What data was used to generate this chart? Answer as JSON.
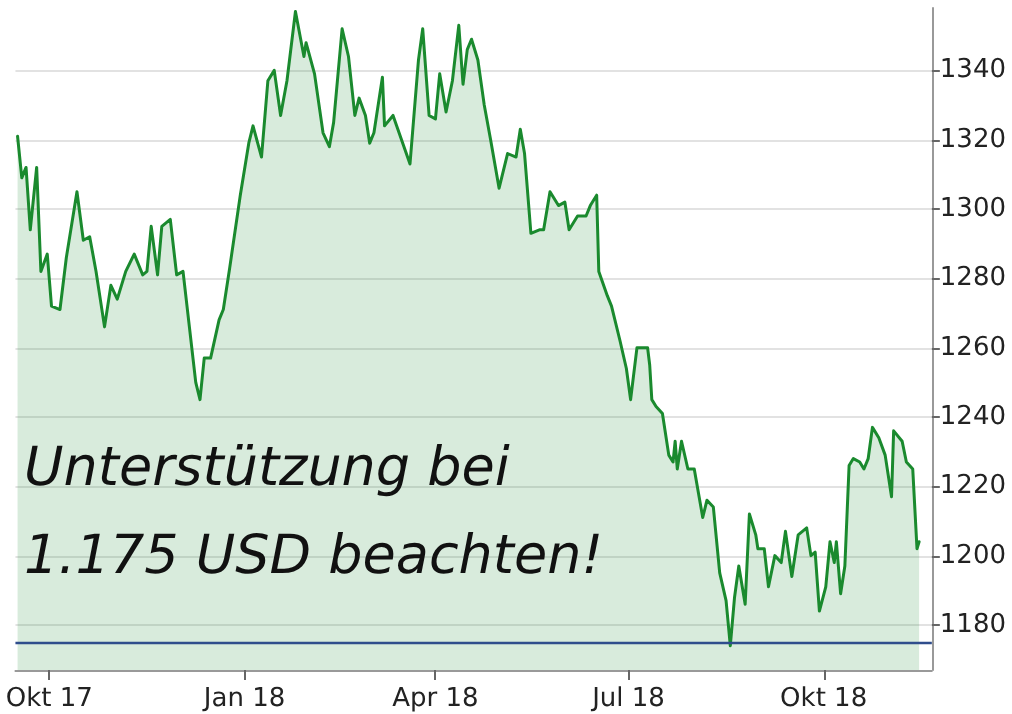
{
  "chart_data": {
    "type": "area",
    "x": [
      "2017-09-16",
      "2017-09-18",
      "2017-09-20",
      "2017-09-22",
      "2017-09-25",
      "2017-09-27",
      "2017-09-30",
      "2017-10-02",
      "2017-10-06",
      "2017-10-09",
      "2017-10-14",
      "2017-10-17",
      "2017-10-20",
      "2017-10-23",
      "2017-10-27",
      "2017-10-30",
      "2017-11-02",
      "2017-11-06",
      "2017-11-10",
      "2017-11-14",
      "2017-11-16",
      "2017-11-18",
      "2017-11-21",
      "2017-11-23",
      "2017-11-27",
      "2017-11-30",
      "2017-12-03",
      "2017-12-06",
      "2017-12-09",
      "2017-12-11",
      "2017-12-13",
      "2017-12-16",
      "2017-12-20",
      "2017-12-22",
      "2017-12-25",
      "2017-12-30",
      "2018-01-03",
      "2018-01-05",
      "2018-01-09",
      "2018-01-12",
      "2018-01-15",
      "2018-01-18",
      "2018-01-21",
      "2018-01-25",
      "2018-01-29",
      "2018-01-30",
      "2018-02-03",
      "2018-02-07",
      "2018-02-10",
      "2018-02-12",
      "2018-02-16",
      "2018-02-19",
      "2018-02-22",
      "2018-02-24",
      "2018-02-27",
      "2018-03-01",
      "2018-03-03",
      "2018-03-07",
      "2018-03-08",
      "2018-03-12",
      "2018-03-16",
      "2018-03-20",
      "2018-03-24",
      "2018-03-26",
      "2018-03-29",
      "2018-04-01",
      "2018-04-03",
      "2018-04-06",
      "2018-04-09",
      "2018-04-12",
      "2018-04-14",
      "2018-04-16",
      "2018-04-18",
      "2018-04-21",
      "2018-04-24",
      "2018-04-27",
      "2018-05-01",
      "2018-05-05",
      "2018-05-09",
      "2018-05-11",
      "2018-05-13",
      "2018-05-16",
      "2018-05-20",
      "2018-05-22",
      "2018-05-25",
      "2018-05-29",
      "2018-06-01",
      "2018-06-03",
      "2018-06-07",
      "2018-06-11",
      "2018-06-13",
      "2018-06-16",
      "2018-06-17",
      "2018-06-21",
      "2018-06-23",
      "2018-06-27",
      "2018-06-30",
      "2018-07-02",
      "2018-07-05",
      "2018-07-10",
      "2018-07-11",
      "2018-07-12",
      "2018-07-14",
      "2018-07-17",
      "2018-07-20",
      "2018-07-22",
      "2018-07-23",
      "2018-07-24",
      "2018-07-26",
      "2018-07-29",
      "2018-08-01",
      "2018-08-05",
      "2018-08-07",
      "2018-08-10",
      "2018-08-13",
      "2018-08-16",
      "2018-08-18",
      "2018-08-20",
      "2018-08-22",
      "2018-08-25",
      "2018-08-27",
      "2018-08-30",
      "2018-08-31",
      "2018-09-03",
      "2018-09-05",
      "2018-09-08",
      "2018-09-11",
      "2018-09-13",
      "2018-09-16",
      "2018-09-19",
      "2018-09-23",
      "2018-09-25",
      "2018-09-27",
      "2018-09-29",
      "2018-10-02",
      "2018-10-04",
      "2018-10-06",
      "2018-10-07",
      "2018-10-09",
      "2018-10-11",
      "2018-10-13",
      "2018-10-15",
      "2018-10-18",
      "2018-10-20",
      "2018-10-22",
      "2018-10-24",
      "2018-10-27",
      "2018-10-30",
      "2018-11-02",
      "2018-11-03",
      "2018-11-07",
      "2018-11-09",
      "2018-11-12",
      "2018-11-14",
      "2018-11-15"
    ],
    "series": [
      {
        "color": "#1a8a2e",
        "values": [
          1321,
          1309,
          1312,
          1294,
          1312,
          1282,
          1287,
          1272,
          1271,
          1286,
          1305,
          1291,
          1292,
          1282,
          1266,
          1278,
          1274,
          1282,
          1287,
          1281,
          1282,
          1295,
          1281,
          1295,
          1297,
          1281,
          1282,
          1266,
          1250,
          1245,
          1257,
          1257,
          1268,
          1271,
          1283,
          1304,
          1319,
          1324,
          1315,
          1337,
          1340,
          1327,
          1337,
          1357,
          1344,
          1348,
          1339,
          1322,
          1318,
          1325,
          1352,
          1344,
          1327,
          1332,
          1327,
          1319,
          1322,
          1338,
          1324,
          1327,
          1320,
          1313,
          1343,
          1352,
          1327,
          1326,
          1339,
          1328,
          1337,
          1353,
          1336,
          1346,
          1349,
          1343,
          1330,
          1320,
          1306,
          1316,
          1315,
          1323,
          1316,
          1293,
          1294,
          1294,
          1305,
          1301,
          1302,
          1294,
          1298,
          1298,
          1301,
          1304,
          1282,
          1275,
          1272,
          1262,
          1254,
          1245,
          1260,
          1260,
          1255,
          1245,
          1243,
          1241,
          1229,
          1227,
          1233,
          1225,
          1233,
          1225,
          1225,
          1211,
          1216,
          1214,
          1195,
          1187,
          1174,
          1188,
          1197,
          1186,
          1212,
          1206,
          1202,
          1202,
          1191,
          1200,
          1198,
          1207,
          1194,
          1206,
          1208,
          1200,
          1201,
          1184,
          1191,
          1204,
          1198,
          1204,
          1189,
          1197,
          1226,
          1228,
          1227,
          1225,
          1228,
          1237,
          1234,
          1229,
          1217,
          1236,
          1233,
          1227,
          1225,
          1202,
          1204
        ]
      }
    ],
    "xlim": [
      "2017-09-15",
      "2018-11-21"
    ],
    "xticks": [
      {
        "value": "2017-10-01",
        "label": "Okt 17"
      },
      {
        "value": "2018-01-01",
        "label": "Jan 18"
      },
      {
        "value": "2018-04-01",
        "label": "Apr 18"
      },
      {
        "value": "2018-07-01",
        "label": "Jul 18"
      },
      {
        "value": "2018-10-01",
        "label": "Okt 18"
      }
    ],
    "ylim": [
      1167,
      1358
    ],
    "yticks": [
      1180,
      1200,
      1220,
      1240,
      1260,
      1280,
      1300,
      1320,
      1340
    ],
    "grid": "y",
    "ref_lines": [
      {
        "axis": "y",
        "value": 1175,
        "color": "#2f4d8c"
      }
    ],
    "annotations": [
      "Unterstützung bei 1.175 USD beachten!"
    ]
  }
}
